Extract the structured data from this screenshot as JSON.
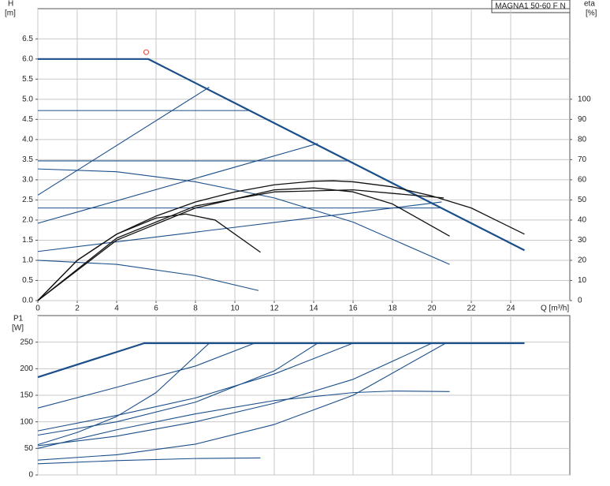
{
  "chart_data": [
    {
      "type": "line",
      "legend_text": "MAGNA1 50-60 F N",
      "y_label": "H",
      "y_unit": "[m]",
      "y2_label": "eta",
      "y2_unit": "[%]",
      "x_label": "Q [m³/h]",
      "xlim": [
        0,
        27
      ],
      "xticks": [
        0,
        2,
        4,
        6,
        8,
        10,
        12,
        14,
        16,
        18,
        20,
        22,
        24
      ],
      "ylim": [
        0,
        7.25
      ],
      "yticks": [
        {
          "value": 0,
          "label": "0.0"
        },
        0.5,
        {
          "value": 1,
          "label": "1.0"
        },
        1.5,
        {
          "value": 2,
          "label": "2.0"
        },
        2.5,
        {
          "value": 3,
          "label": "3.0"
        },
        3.5,
        {
          "value": 4,
          "label": "4.0"
        },
        4.5,
        {
          "value": 5,
          "label": "5.0"
        },
        5.5,
        {
          "value": 6,
          "label": "6.0"
        },
        6.5
      ],
      "y2lim": [
        0,
        145
      ],
      "y2ticks": [
        0,
        10,
        20,
        30,
        40,
        50,
        60,
        70,
        80,
        90,
        100
      ],
      "grid": true,
      "series": [
        {
          "color": "#1b4f8a",
          "x": [
            0,
            5.6,
            24.7
          ],
          "values": [
            6.0,
            6.0,
            1.25
          ]
        },
        {
          "color": "#1b4f8a",
          "x": [
            0,
            10.75
          ],
          "values": [
            4.72,
            4.72
          ]
        },
        {
          "color": "#1b4f8a",
          "x": [
            0,
            15.8
          ],
          "values": [
            3.47,
            3.47
          ]
        },
        {
          "color": "#1b4f8a",
          "x": [
            0,
            20.4
          ],
          "values": [
            2.3,
            2.3
          ]
        },
        {
          "color": "#1b4f8a",
          "x": [
            0,
            8.7
          ],
          "values": [
            2.62,
            5.3
          ]
        },
        {
          "color": "#1b4f8a",
          "x": [
            0,
            14.2
          ],
          "values": [
            1.92,
            3.9
          ]
        },
        {
          "color": "#1b4f8a",
          "x": [
            0,
            20.5
          ],
          "values": [
            1.22,
            2.45
          ]
        },
        {
          "color": "#1b4f8a",
          "x": [
            0,
            4,
            8,
            12,
            16,
            20.9
          ],
          "values": [
            3.27,
            3.2,
            2.95,
            2.55,
            1.95,
            0.9
          ]
        },
        {
          "color": "#1b4f8a",
          "x": [
            0,
            4,
            8,
            11.2
          ],
          "values": [
            1.0,
            0.9,
            0.62,
            0.25
          ]
        },
        {
          "color": "#111111",
          "axis": "y2",
          "x": [
            0,
            2,
            4,
            6,
            8,
            10,
            12,
            14,
            15,
            16,
            18,
            20,
            22,
            24.7
          ],
          "values": [
            0,
            20,
            33,
            42,
            49,
            54,
            57.5,
            59.3,
            59.5,
            59,
            56.5,
            52,
            46,
            33
          ]
        },
        {
          "color": "#111111",
          "axis": "y2",
          "x": [
            0,
            4,
            8,
            12,
            16,
            20.6
          ],
          "values": [
            0,
            31,
            47,
            54,
            55,
            51
          ]
        },
        {
          "color": "#111111",
          "axis": "y2",
          "x": [
            0,
            4,
            8,
            12,
            14,
            16,
            18,
            20.9
          ],
          "values": [
            0,
            30,
            46,
            55,
            56,
            54,
            48,
            32
          ]
        },
        {
          "color": "#111111",
          "axis": "y2",
          "x": [
            0,
            2,
            4,
            6,
            7.5,
            9,
            11.3
          ],
          "values": [
            0,
            20,
            33,
            41,
            43,
            40,
            24
          ]
        }
      ],
      "points": [
        {
          "x": 5.5,
          "y": 6.17,
          "color": "#e0463c"
        }
      ]
    },
    {
      "type": "line",
      "y_label": "P1",
      "y_unit": "[W]",
      "xlim": [
        0,
        27
      ],
      "xticks": [
        0,
        2,
        4,
        6,
        8,
        10,
        12,
        14,
        16,
        18,
        20,
        22,
        24
      ],
      "xtick_labels": false,
      "ylim": [
        0,
        300
      ],
      "yticks": [
        0,
        50,
        100,
        150,
        200,
        250
      ],
      "grid": true,
      "series": [
        {
          "color": "#1b4f8a",
          "x": [
            0,
            5.4,
            24.7
          ],
          "values": [
            184,
            248,
            248
          ]
        },
        {
          "color": "#1b4f8a",
          "x": [
            0,
            4,
            8,
            11
          ],
          "values": [
            126,
            165,
            205,
            248
          ]
        },
        {
          "color": "#1b4f8a",
          "x": [
            0,
            4,
            8,
            12,
            16
          ],
          "values": [
            83,
            112,
            145,
            190,
            248
          ]
        },
        {
          "color": "#1b4f8a",
          "x": [
            0,
            4,
            8,
            12,
            14.2
          ],
          "values": [
            75,
            100,
            137,
            196,
            248
          ]
        },
        {
          "color": "#1b4f8a",
          "x": [
            0,
            2,
            4,
            6,
            8.7
          ],
          "values": [
            57,
            80,
            110,
            155,
            248
          ]
        },
        {
          "color": "#1b4f8a",
          "x": [
            0,
            4,
            8,
            12,
            16,
            20
          ],
          "values": [
            55,
            73,
            100,
            135,
            180,
            248
          ]
        },
        {
          "color": "#1b4f8a",
          "x": [
            0,
            4,
            8,
            12,
            16,
            20.7
          ],
          "values": [
            28,
            38,
            58,
            95,
            150,
            248
          ]
        },
        {
          "color": "#1b4f8a",
          "x": [
            0,
            4,
            8,
            12,
            16,
            18,
            20.9
          ],
          "values": [
            50,
            85,
            115,
            140,
            155,
            158,
            157
          ]
        },
        {
          "color": "#1b4f8a",
          "x": [
            0,
            4,
            8,
            11.3
          ],
          "values": [
            21,
            27,
            31,
            32
          ]
        }
      ]
    }
  ]
}
